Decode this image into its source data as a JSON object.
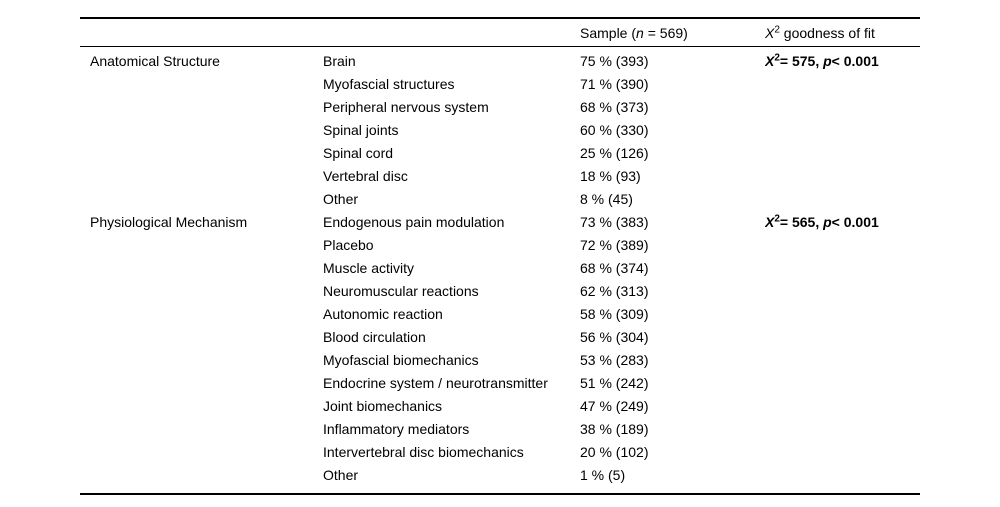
{
  "table": {
    "header": {
      "sample": {
        "prefix": "Sample (",
        "n": "n",
        "suffix": " = 569)"
      },
      "chi": {
        "x": "X",
        "sup": "2",
        "rest": " goodness of fit"
      }
    },
    "groups": [
      {
        "category": "Anatomical Structure",
        "chi": {
          "x": "X",
          "sup": "2",
          "mid": "= 575, ",
          "p": "p",
          "tail": "< 0.001"
        },
        "rows": [
          {
            "label": "Brain",
            "value": "75 % (393)"
          },
          {
            "label": "Myofascial structures",
            "value": "71 % (390)"
          },
          {
            "label": "Peripheral nervous system",
            "value": "68 % (373)"
          },
          {
            "label": "Spinal joints",
            "value": "60 % (330)"
          },
          {
            "label": "Spinal cord",
            "value": "25 % (126)"
          },
          {
            "label": "Vertebral disc",
            "value": "18 % (93)"
          },
          {
            "label": "Other",
            "value": "8 % (45)"
          }
        ]
      },
      {
        "category": "Physiological Mechanism",
        "chi": {
          "x": "X",
          "sup": "2",
          "mid": "= 565, ",
          "p": "p",
          "tail": "< 0.001"
        },
        "rows": [
          {
            "label": "Endogenous pain modulation",
            "value": "73 % (383)"
          },
          {
            "label": "Placebo",
            "value": "72 % (389)"
          },
          {
            "label": "Muscle activity",
            "value": "68 % (374)"
          },
          {
            "label": "Neuromuscular reactions",
            "value": "62 % (313)"
          },
          {
            "label": "Autonomic reaction",
            "value": "58 % (309)"
          },
          {
            "label": "Blood circulation",
            "value": "56 % (304)"
          },
          {
            "label": "Myofascial biomechanics",
            "value": "53 % (283)"
          },
          {
            "label": "Endocrine system / neurotransmitter",
            "value": "51 % (242)"
          },
          {
            "label": "Joint biomechanics",
            "value": "47 % (249)"
          },
          {
            "label": "Inflammatory mediators",
            "value": "38 % (189)"
          },
          {
            "label": "Intervertebral disc biomechanics",
            "value": "20 % (102)"
          },
          {
            "label": "Other",
            "value": "1 % (5)"
          }
        ]
      }
    ]
  }
}
